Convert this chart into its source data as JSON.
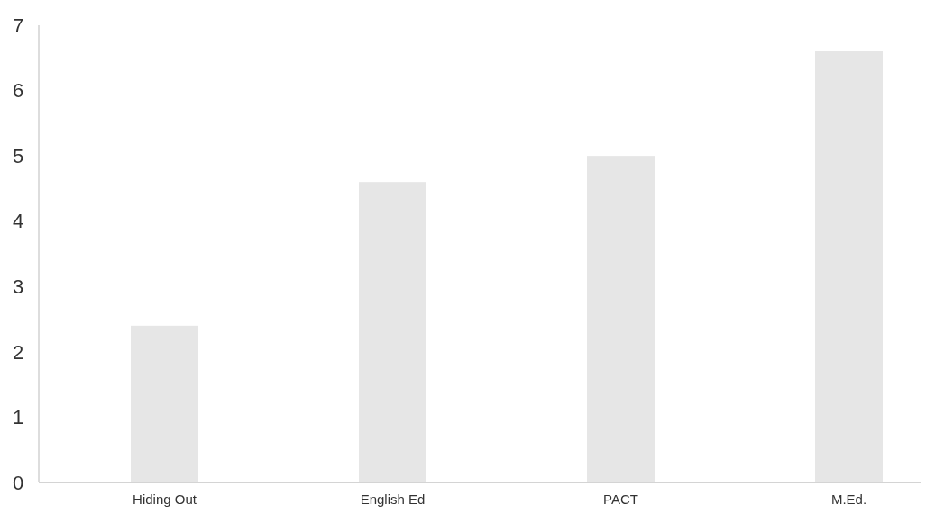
{
  "chart_data": {
    "type": "bar",
    "categories": [
      "Hiding Out",
      "English Ed",
      "PACT",
      "M.Ed."
    ],
    "values": [
      2.4,
      4.6,
      5.0,
      6.6
    ],
    "color": "#e6e6e6",
    "ylim": [
      0,
      7
    ],
    "yticks": [
      0,
      1,
      2,
      3,
      4,
      5,
      6,
      7
    ],
    "grid": false
  }
}
